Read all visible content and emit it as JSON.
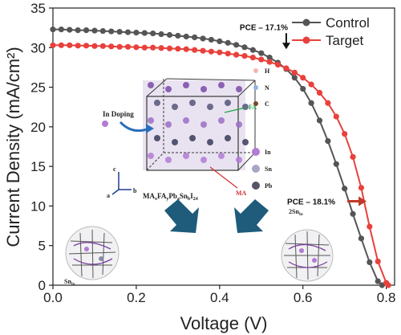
{
  "chart_data": {
    "type": "line",
    "title": "",
    "xlabel": "Voltage (V)",
    "ylabel": "Current Density (mA/cm²)",
    "xlim": [
      0.0,
      0.82
    ],
    "ylim": [
      0,
      35
    ],
    "xticks": [
      0.0,
      0.2,
      0.4,
      0.6,
      0.8
    ],
    "xtick_labels": [
      "0.0",
      "0.2",
      "0.4",
      "0.6",
      "0.8"
    ],
    "yticks": [
      0,
      5,
      10,
      15,
      20,
      25,
      30,
      35
    ],
    "ytick_labels": [
      "0",
      "5",
      "10",
      "15",
      "20",
      "25",
      "30",
      "35"
    ],
    "grid": false,
    "legend_position": "top-right",
    "series": [
      {
        "name": "Control",
        "color": "#555555",
        "x": [
          0.0,
          0.02,
          0.04,
          0.06,
          0.08,
          0.1,
          0.12,
          0.14,
          0.16,
          0.18,
          0.2,
          0.22,
          0.24,
          0.26,
          0.28,
          0.3,
          0.32,
          0.34,
          0.36,
          0.38,
          0.4,
          0.42,
          0.44,
          0.46,
          0.48,
          0.5,
          0.52,
          0.54,
          0.56,
          0.58,
          0.6,
          0.62,
          0.64,
          0.66,
          0.68,
          0.7,
          0.72,
          0.74,
          0.76,
          0.78,
          0.79
        ],
        "y": [
          32.3,
          32.3,
          32.25,
          32.2,
          32.2,
          32.15,
          32.1,
          32.05,
          32.0,
          31.95,
          31.9,
          31.85,
          31.8,
          31.7,
          31.6,
          31.5,
          31.4,
          31.3,
          31.15,
          31.0,
          30.8,
          30.6,
          30.35,
          30.05,
          29.7,
          29.3,
          28.75,
          28.1,
          27.3,
          26.2,
          24.8,
          23.0,
          20.8,
          18.2,
          15.3,
          12.2,
          9.0,
          5.9,
          2.9,
          0.5,
          0.0
        ]
      },
      {
        "name": "Target",
        "color": "#e8413c",
        "x": [
          0.0,
          0.02,
          0.04,
          0.06,
          0.08,
          0.1,
          0.12,
          0.14,
          0.16,
          0.18,
          0.2,
          0.22,
          0.24,
          0.26,
          0.28,
          0.3,
          0.32,
          0.34,
          0.36,
          0.38,
          0.4,
          0.42,
          0.44,
          0.46,
          0.48,
          0.5,
          0.52,
          0.54,
          0.56,
          0.58,
          0.6,
          0.62,
          0.64,
          0.66,
          0.68,
          0.7,
          0.72,
          0.74,
          0.76,
          0.78,
          0.8,
          0.805
        ],
        "y": [
          30.3,
          30.3,
          30.3,
          30.25,
          30.25,
          30.2,
          30.2,
          30.15,
          30.1,
          30.1,
          30.05,
          30.0,
          30.0,
          29.95,
          29.9,
          29.85,
          29.8,
          29.7,
          29.6,
          29.5,
          29.4,
          29.25,
          29.1,
          28.95,
          28.75,
          28.5,
          28.2,
          27.85,
          27.4,
          26.85,
          26.2,
          25.35,
          24.3,
          23.0,
          21.3,
          19.1,
          16.2,
          12.3,
          7.4,
          3.0,
          0.3,
          0.0
        ]
      }
    ],
    "annotations": [
      {
        "text": "PCE – 17.1%",
        "series": "Control",
        "arrow": "down",
        "x": 0.56,
        "y": 29.8
      },
      {
        "text": "PCE – 18.1%",
        "series": "Target",
        "arrow": "right",
        "x": 0.745,
        "y": 10.6
      }
    ],
    "inset": {
      "formula": "MA",
      "formula_rest": "FA",
      "formula_pb": "Pb",
      "formula_sn": "Sn",
      "formula_i": "I",
      "sub_x": "x",
      "sub_y": "y",
      "sub_a": "a",
      "sub_b": "b",
      "sub_24": "24",
      "label_doping": "In Doping",
      "label_fa": "FA",
      "label_ma": "MA",
      "axis_c": "c",
      "axis_a": "a",
      "axis_b": "b",
      "legend": [
        "H",
        "N",
        "C",
        "In",
        "Sn",
        "Pb"
      ],
      "sn_label_left": "Sn",
      "sn_label_left_sub": "In",
      "sn_label_right_pre": "2Sn",
      "sn_label_right_sub": "In"
    }
  }
}
